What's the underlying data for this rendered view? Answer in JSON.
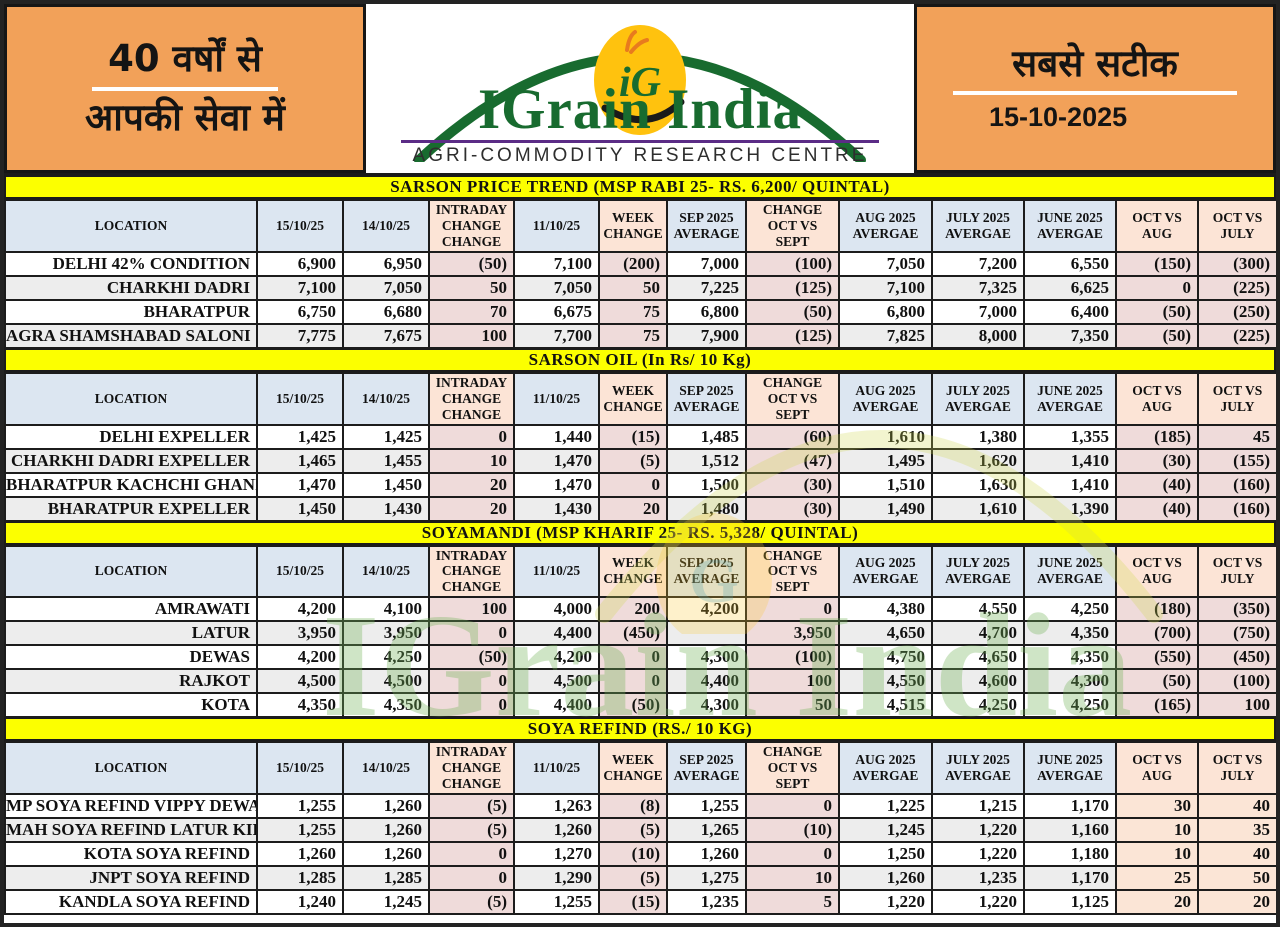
{
  "header": {
    "left_line1": "40 वर्षों से",
    "left_line2": "आपकी सेवा में",
    "logo_badge": "iG",
    "logo_title": "IGrain India",
    "logo_subtitle": "AGRI-COMMODITY RESEARCH CENTRE",
    "right_line1": "सबसे सटीक",
    "date": "15-10-2025"
  },
  "watermark_text": "IGrain India",
  "columns": [
    "LOCATION",
    "15/10/25",
    "14/10/25",
    "INTRADAY\nCHANGE\nCHANGE",
    "11/10/25",
    "WEEK\nCHANGE",
    "SEP 2025\nAVERAGE",
    "CHANGE\nOCT VS\nSEPT",
    "AUG 2025\nAVERGAE",
    "JULY 2025\nAVERGAE",
    "JUNE 2025\nAVERGAE",
    "OCT VS\nAUG",
    "OCT VS\nJULY"
  ],
  "tables": [
    {
      "title": "SARSON PRICE TREND (MSP RABI 25- RS. 6,200/ QUINTAL)",
      "rows": [
        {
          "location": "DELHI 42% CONDITION",
          "values": [
            "6,900",
            "6,950",
            "(50)",
            "7,100",
            "(200)",
            "7,000",
            "(100)",
            "7,050",
            "7,200",
            "6,550",
            "(150)",
            "(300)"
          ]
        },
        {
          "location": "CHARKHI DADRI",
          "values": [
            "7,100",
            "7,050",
            "50",
            "7,050",
            "50",
            "7,225",
            "(125)",
            "7,100",
            "7,325",
            "6,625",
            "0",
            "(225)"
          ]
        },
        {
          "location": "BHARATPUR",
          "values": [
            "6,750",
            "6,680",
            "70",
            "6,675",
            "75",
            "6,800",
            "(50)",
            "6,800",
            "7,000",
            "6,400",
            "(50)",
            "(250)"
          ]
        },
        {
          "location": "AGRA SHAMSHABAD SALONI",
          "values": [
            "7,775",
            "7,675",
            "100",
            "7,700",
            "75",
            "7,900",
            "(125)",
            "7,825",
            "8,000",
            "7,350",
            "(50)",
            "(225)"
          ]
        }
      ]
    },
    {
      "title": "SARSON OIL (In Rs/ 10 Kg)",
      "rows": [
        {
          "location": "DELHI EXPELLER",
          "values": [
            "1,425",
            "1,425",
            "0",
            "1,440",
            "(15)",
            "1,485",
            "(60)",
            "1,610",
            "1,380",
            "1,355",
            "(185)",
            "45"
          ]
        },
        {
          "location": "CHARKHI DADRI EXPELLER",
          "values": [
            "1,465",
            "1,455",
            "10",
            "1,470",
            "(5)",
            "1,512",
            "(47)",
            "1,495",
            "1,620",
            "1,410",
            "(30)",
            "(155)"
          ]
        },
        {
          "location": "BHARATPUR KACHCHI GHANI",
          "values": [
            "1,470",
            "1,450",
            "20",
            "1,470",
            "0",
            "1,500",
            "(30)",
            "1,510",
            "1,630",
            "1,410",
            "(40)",
            "(160)"
          ]
        },
        {
          "location": "BHARATPUR EXPELLER",
          "values": [
            "1,450",
            "1,430",
            "20",
            "1,430",
            "20",
            "1,480",
            "(30)",
            "1,490",
            "1,610",
            "1,390",
            "(40)",
            "(160)"
          ]
        }
      ]
    },
    {
      "title": "SOYAMANDI (MSP KHARIF 25- RS. 5,328/ QUINTAL)",
      "rows": [
        {
          "location": "AMRAWATI",
          "values": [
            "4,200",
            "4,100",
            "100",
            "4,000",
            "200",
            "4,200",
            "0",
            "4,380",
            "4,550",
            "4,250",
            "(180)",
            "(350)"
          ]
        },
        {
          "location": "LATUR",
          "values": [
            "3,950",
            "3,950",
            "0",
            "4,400",
            "(450)",
            "",
            "3,950",
            "4,650",
            "4,700",
            "4,350",
            "(700)",
            "(750)"
          ]
        },
        {
          "location": "DEWAS",
          "values": [
            "4,200",
            "4,250",
            "(50)",
            "4,200",
            "0",
            "4,300",
            "(100)",
            "4,750",
            "4,650",
            "4,350",
            "(550)",
            "(450)"
          ]
        },
        {
          "location": "RAJKOT",
          "values": [
            "4,500",
            "4,500",
            "0",
            "4,500",
            "0",
            "4,400",
            "100",
            "4,550",
            "4,600",
            "4,300",
            "(50)",
            "(100)"
          ]
        },
        {
          "location": "KOTA",
          "values": [
            "4,350",
            "4,350",
            "0",
            "4,400",
            "(50)",
            "4,300",
            "50",
            "4,515",
            "4,250",
            "4,250",
            "(165)",
            "100"
          ]
        }
      ]
    },
    {
      "title": "SOYA REFIND (RS./ 10 KG)",
      "rows": [
        {
          "location": "MP SOYA REFIND VIPPY DEWAS",
          "values": [
            "1,255",
            "1,260",
            "(5)",
            "1,263",
            "(8)",
            "1,255",
            "0",
            "1,225",
            "1,215",
            "1,170",
            "30",
            "40"
          ]
        },
        {
          "location": "MAH SOYA REFIND LATUR KIRTI",
          "values": [
            "1,255",
            "1,260",
            "(5)",
            "1,260",
            "(5)",
            "1,265",
            "(10)",
            "1,245",
            "1,220",
            "1,160",
            "10",
            "35"
          ]
        },
        {
          "location": "KOTA SOYA REFIND",
          "values": [
            "1,260",
            "1,260",
            "0",
            "1,270",
            "(10)",
            "1,260",
            "0",
            "1,250",
            "1,220",
            "1,180",
            "10",
            "40"
          ]
        },
        {
          "location": "JNPT SOYA REFIND",
          "values": [
            "1,285",
            "1,285",
            "0",
            "1,290",
            "(5)",
            "1,275",
            "10",
            "1,260",
            "1,235",
            "1,170",
            "25",
            "50"
          ]
        },
        {
          "location": "KANDLA SOYA REFIND",
          "values": [
            "1,240",
            "1,245",
            "(5)",
            "1,255",
            "(15)",
            "1,235",
            "5",
            "1,220",
            "1,220",
            "1,125",
            "20",
            "20"
          ]
        }
      ]
    }
  ],
  "colors": {
    "accent_orange": "#F2A159",
    "title_yellow": "#FCFF00",
    "header_blue": "#DCE6F1",
    "header_peach": "#FCE4D6",
    "change_pink": "#EFDBDA",
    "change_peach": "#FBE5D6",
    "positive_green": "#2FAD68",
    "negative_red": "#FE0000",
    "logo_green": "#186B2F",
    "logo_purple": "#5B2C86",
    "logo_yellow": "#FFC20E",
    "row_alt": "#EDEDED"
  }
}
